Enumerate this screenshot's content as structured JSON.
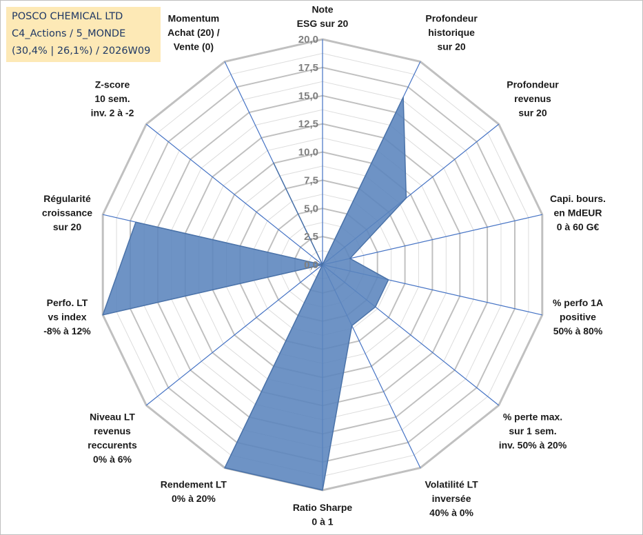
{
  "title_box": {
    "line1": "POSCO CHEMICAL LTD",
    "line2": "C4_Actions / 5_MONDE",
    "line3": "(30,4% | 26,1%) / 2026W09"
  },
  "colors": {
    "fill": "#5a84bd",
    "fill_stroke": "#4a72a8",
    "spoke": "#4472c4",
    "grid_major": "#c0c0c0",
    "grid_minor": "#dcdcdc",
    "tick_text": "#7f7f7f",
    "title_bg": "#fde9b6"
  },
  "chart_data": {
    "type": "radar",
    "title": "",
    "range": [
      0,
      20
    ],
    "major_step": 2.5,
    "minor_step": 1.25,
    "tick_labels": [
      "0,0",
      "2,5",
      "5,0",
      "7,5",
      "10,0",
      "12,5",
      "15,0",
      "17,5",
      "20,0"
    ],
    "categories": [
      [
        "Note",
        "ESG sur 20"
      ],
      [
        "Profondeur",
        "historique",
        "sur 20"
      ],
      [
        "Profondeur",
        "revenus",
        "sur 20"
      ],
      [
        "Capi. bours.",
        "en MdEUR",
        "0 à 60 G€"
      ],
      [
        "% perfo 1A",
        "positive",
        "50% à 80%"
      ],
      [
        "% perte max.",
        "sur 1 sem.",
        "inv. 50% à 20%"
      ],
      [
        "Volatilité LT",
        "inversée",
        "40% à 0%"
      ],
      [
        "Ratio Sharpe",
        "0 à 1"
      ],
      [
        "Rendement LT",
        "0% à 20%"
      ],
      [
        "Niveau LT",
        "revenus",
        "reccurents",
        "0% à 6%"
      ],
      [
        "Perfo. LT",
        "vs index",
        "-8% à 12%"
      ],
      [
        "Régularité",
        "croissance",
        "sur 20"
      ],
      [
        "Z-score",
        "10 sem.",
        "inv. 2 à -2"
      ],
      [
        "Momentum",
        "Achat (20) /",
        "Vente (0)"
      ]
    ],
    "series": [
      {
        "name": "POSCO CHEMICAL LTD",
        "values": [
          0,
          16.5,
          9.5,
          2.5,
          6.0,
          6.0,
          6.0,
          20.0,
          20.0,
          0,
          20.0,
          17.0,
          0,
          10.0
        ]
      }
    ]
  }
}
